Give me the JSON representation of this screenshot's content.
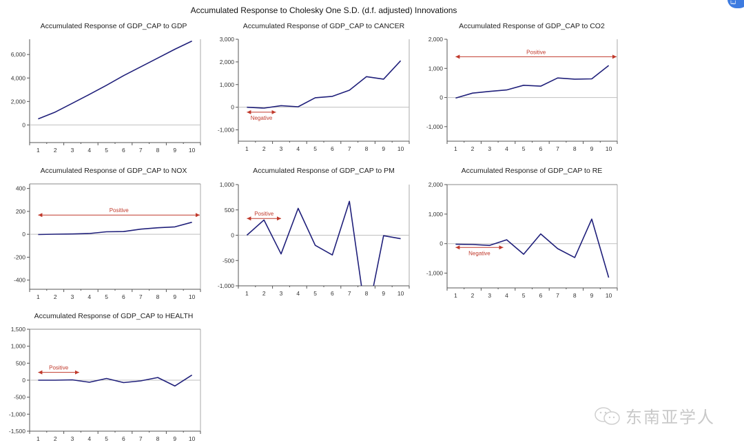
{
  "title": "Accumulated Response to Cholesky One S.D. (d.f. adjusted) Innovations",
  "watermark": {
    "text": "东南亚学人",
    "icon": "wechat-icon"
  },
  "corner_badge": {
    "text": "لبنا"
  },
  "colors": {
    "line": "#1f1f7a",
    "annotation": "#c0392b",
    "axis": "#555555",
    "zero_line": "#bfbfbf"
  },
  "chart_data": [
    {
      "type": "line",
      "id": "gdp",
      "title": "Accumulated Response of GDP_CAP to GDP",
      "x": [
        1,
        2,
        3,
        4,
        5,
        6,
        7,
        8,
        9,
        10
      ],
      "values": [
        520,
        1100,
        1850,
        2600,
        3380,
        4200,
        4950,
        5700,
        6450,
        7150
      ],
      "ylim": [
        -1500,
        7300
      ],
      "yticks": [
        0,
        2000,
        4000,
        6000
      ],
      "ytick_labels": [
        "0",
        "2,000",
        "4,000",
        "6,000"
      ],
      "annotation": null
    },
    {
      "type": "line",
      "id": "cancer",
      "title": "Accumulated Response of GDP_CAP to CANCER",
      "x": [
        1,
        2,
        3,
        4,
        5,
        6,
        7,
        8,
        9,
        10
      ],
      "values": [
        0,
        -40,
        70,
        20,
        420,
        480,
        750,
        1350,
        1240,
        2050
      ],
      "ylim": [
        -1500,
        3000
      ],
      "yticks": [
        -1000,
        0,
        1000,
        2000,
        3000
      ],
      "ytick_labels": [
        "-1,000",
        "0",
        "1,000",
        "2,000",
        "3,000"
      ],
      "annotation": {
        "label": "Negative",
        "from": 0.5,
        "to": 2.2,
        "y": -220,
        "label_below": true
      }
    },
    {
      "type": "line",
      "id": "co2",
      "title": "Accumulated Response of GDP_CAP to CO2",
      "x": [
        1,
        2,
        3,
        4,
        5,
        6,
        7,
        8,
        9,
        10
      ],
      "values": [
        -20,
        150,
        210,
        260,
        420,
        390,
        670,
        630,
        640,
        1100
      ],
      "ylim": [
        -1500,
        2000
      ],
      "yticks": [
        -1000,
        0,
        1000,
        2000
      ],
      "ytick_labels": [
        "-1,000",
        "0",
        "1,000",
        "2,000"
      ],
      "annotation": {
        "label": "Positive",
        "from": 0.5,
        "to": 10.5,
        "y": 1400,
        "label_below": false
      }
    },
    {
      "type": "line",
      "id": "nox",
      "title": "Accumulated Response of GDP_CAP to NOX",
      "x": [
        1,
        2,
        3,
        4,
        5,
        6,
        7,
        8,
        9,
        10
      ],
      "values": [
        -2,
        1,
        3,
        7,
        22,
        24,
        45,
        57,
        65,
        105
      ],
      "ylim": [
        -480,
        440
      ],
      "yticks": [
        -400,
        -200,
        0,
        200,
        400
      ],
      "ytick_labels": [
        "-400",
        "-200",
        "0",
        "200",
        "400"
      ],
      "annotation": {
        "label": "Positive",
        "from": 0.5,
        "to": 10.5,
        "y": 168,
        "label_below": false
      }
    },
    {
      "type": "line",
      "id": "pm",
      "title": "Accumulated Response of GDP_CAP to PM",
      "x": [
        1,
        2,
        3,
        4,
        5,
        6,
        7,
        8,
        9,
        10
      ],
      "values": [
        0,
        300,
        -370,
        530,
        -200,
        -390,
        670,
        -1700,
        -10,
        -70
      ],
      "ylim": [
        -1000,
        1000
      ],
      "yticks": [
        -1000,
        -500,
        0,
        500,
        1000
      ],
      "ytick_labels": [
        "-1,000",
        "-500",
        "0",
        "500",
        "1,000"
      ],
      "annotation": {
        "label": "Positive",
        "from": 0.5,
        "to": 2.5,
        "y": 330,
        "label_below": false
      }
    },
    {
      "type": "line",
      "id": "re",
      "title": "Accumulated Response of GDP_CAP to RE",
      "x": [
        1,
        2,
        3,
        4,
        5,
        6,
        7,
        8,
        9,
        10
      ],
      "values": [
        -20,
        -30,
        -60,
        130,
        -360,
        330,
        -170,
        -470,
        830,
        -1150
      ],
      "ylim": [
        -1500,
        2000
      ],
      "yticks": [
        -1000,
        0,
        1000,
        2000
      ],
      "ytick_labels": [
        "-1,000",
        "0",
        "1,000",
        "2,000"
      ],
      "annotation": {
        "label": "Negative",
        "from": 0.5,
        "to": 3.3,
        "y": -130,
        "label_below": true
      }
    },
    {
      "type": "line",
      "id": "health",
      "title": "Accumulated Response of GDP_CAP to HEALTH",
      "x": [
        1,
        2,
        3,
        4,
        5,
        6,
        7,
        8,
        9,
        10
      ],
      "values": [
        0,
        0,
        10,
        -60,
        50,
        -70,
        -20,
        80,
        -170,
        150
      ],
      "ylim": [
        -1500,
        1500
      ],
      "yticks": [
        -1500,
        -1000,
        -500,
        0,
        500,
        1000,
        1500
      ],
      "ytick_labels": [
        "-1,500",
        "-1,000",
        "-500",
        "0",
        "500",
        "1,000",
        "1,500"
      ],
      "annotation": {
        "label": "Positive",
        "from": 0.5,
        "to": 2.9,
        "y": 230,
        "label_below": false
      }
    }
  ]
}
